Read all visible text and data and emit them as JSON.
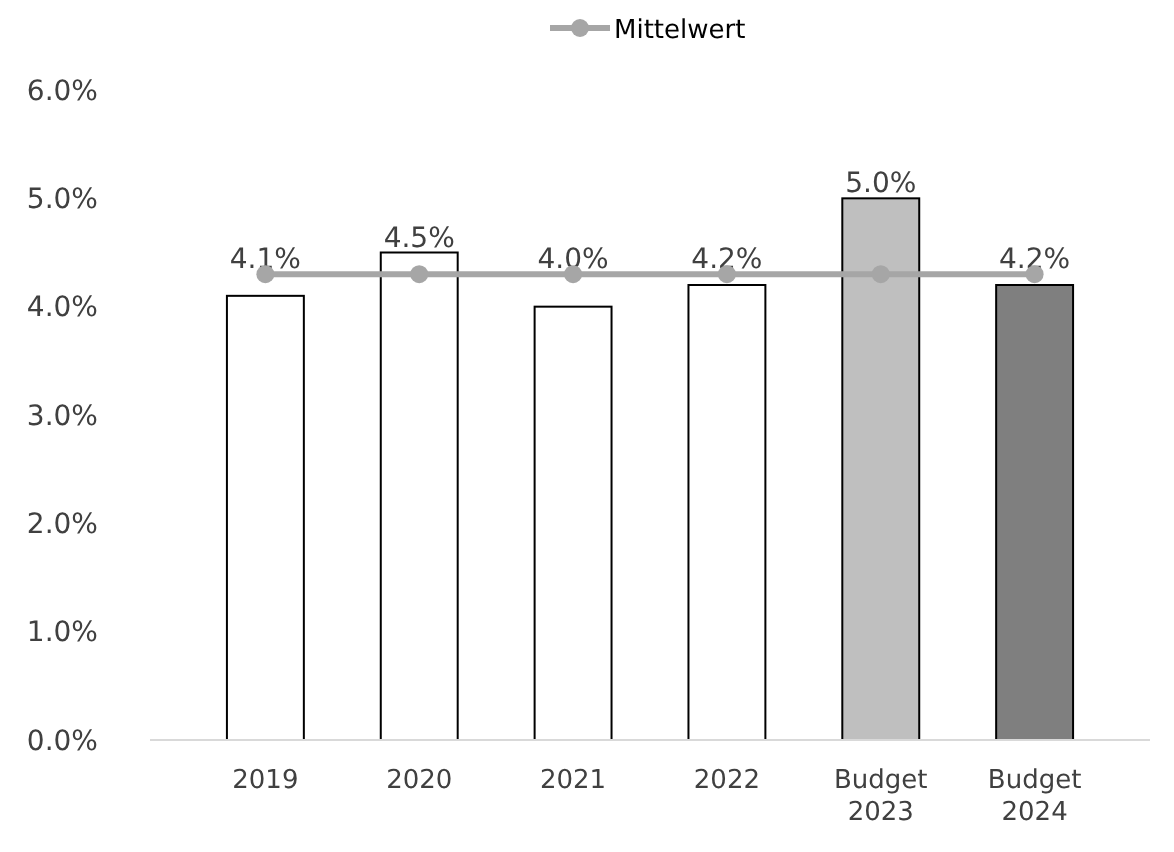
{
  "chart_data": {
    "type": "bar",
    "categories": [
      "2019",
      "2020",
      "2021",
      "2022",
      "Budget 2023",
      "Budget 2024"
    ],
    "series": [
      {
        "colors": [
          "#ffffff",
          "#ffffff",
          "#ffffff",
          "#ffffff",
          "#bfbfbf",
          "#7f7f7f"
        ],
        "values": [
          4.1,
          4.5,
          4.0,
          4.2,
          5.0,
          4.2
        ],
        "value_labels": [
          "4.1%",
          "4.5%",
          "4.0%",
          "4.2%",
          "5.0%",
          "4.2%"
        ]
      },
      {
        "type": "line",
        "name": "Mittelwert",
        "color": "#a6a6a6",
        "marker": "circle",
        "values": [
          4.3,
          4.3,
          4.3,
          4.3,
          4.3,
          4.3
        ]
      }
    ],
    "ylim": [
      0,
      6
    ],
    "yticks": [
      {
        "value": 0,
        "label": "0.0%"
      },
      {
        "value": 1,
        "label": "1.0%"
      },
      {
        "value": 2,
        "label": "2.0%"
      },
      {
        "value": 3,
        "label": "3.0%"
      },
      {
        "value": 4,
        "label": "4.0%"
      },
      {
        "value": 5,
        "label": "5.0%"
      },
      {
        "value": 6,
        "label": "6.0%"
      }
    ],
    "grid": false,
    "legend": "top"
  }
}
